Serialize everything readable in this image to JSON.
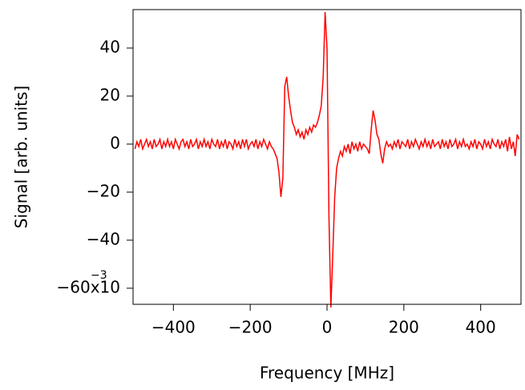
{
  "chart_data": {
    "type": "line",
    "xlabel": "Frequency [MHz]",
    "ylabel": "Signal [arb. units]",
    "y_exponent": "−3",
    "color": "#ff0000",
    "xlim": [
      -505,
      505
    ],
    "ylim": [
      -66.7,
      56
    ],
    "xticks": [
      {
        "value": -400,
        "label": "−400"
      },
      {
        "value": -200,
        "label": "−200"
      },
      0,
      200,
      400
    ],
    "yticks": [
      {
        "value": -60,
        "label": "−60x10"
      },
      {
        "value": -40,
        "label": "−40"
      },
      {
        "value": -20,
        "label": "−20"
      },
      0,
      20,
      40
    ],
    "x": [
      -500,
      -495,
      -490,
      -485,
      -480,
      -475,
      -470,
      -465,
      -460,
      -455,
      -450,
      -445,
      -440,
      -435,
      -430,
      -425,
      -420,
      -415,
      -410,
      -405,
      -400,
      -395,
      -390,
      -385,
      -380,
      -375,
      -370,
      -365,
      -360,
      -355,
      -350,
      -345,
      -340,
      -335,
      -330,
      -325,
      -320,
      -315,
      -310,
      -305,
      -300,
      -295,
      -290,
      -285,
      -280,
      -275,
      -270,
      -265,
      -260,
      -255,
      -250,
      -245,
      -240,
      -235,
      -230,
      -225,
      -220,
      -215,
      -210,
      -205,
      -200,
      -195,
      -190,
      -185,
      -180,
      -175,
      -170,
      -165,
      -160,
      -155,
      -150,
      -145,
      -140,
      -135,
      -130,
      -125,
      -120,
      -115,
      -110,
      -105,
      -100,
      -95,
      -90,
      -85,
      -80,
      -75,
      -70,
      -65,
      -60,
      -55,
      -50,
      -45,
      -40,
      -35,
      -30,
      -25,
      -20,
      -15,
      -10,
      -5,
      0,
      5,
      10,
      15,
      20,
      25,
      30,
      35,
      40,
      45,
      50,
      55,
      60,
      65,
      70,
      75,
      80,
      85,
      90,
      95,
      100,
      105,
      110,
      115,
      120,
      125,
      130,
      135,
      140,
      145,
      150,
      155,
      160,
      165,
      170,
      175,
      180,
      185,
      190,
      195,
      200,
      205,
      210,
      215,
      220,
      225,
      230,
      235,
      240,
      245,
      250,
      255,
      260,
      265,
      270,
      275,
      280,
      285,
      290,
      295,
      300,
      305,
      310,
      315,
      320,
      325,
      330,
      335,
      340,
      345,
      350,
      355,
      360,
      365,
      370,
      375,
      380,
      385,
      390,
      395,
      400,
      405,
      410,
      415,
      420,
      425,
      430,
      435,
      440,
      445,
      450,
      455,
      460,
      465,
      470,
      475,
      480,
      485,
      490,
      495,
      500
    ],
    "values": [
      -2,
      1,
      -1,
      2,
      -2,
      0,
      2,
      -1,
      1,
      -2,
      2,
      -1,
      0,
      2,
      -2,
      1,
      -1,
      2,
      -1,
      1,
      -2,
      2,
      0,
      -2,
      1,
      2,
      -1,
      1,
      -2,
      2,
      -1,
      0,
      2,
      -2,
      1,
      -1,
      2,
      -1,
      1,
      -2,
      2,
      0,
      -1,
      2,
      -2,
      1,
      -1,
      2,
      -2,
      1,
      0,
      -2,
      2,
      -1,
      1,
      -2,
      2,
      -1,
      2,
      -2,
      0,
      1,
      -1,
      2,
      -2,
      1,
      -1,
      2,
      0,
      -2,
      1,
      -1,
      -2,
      -4,
      -6,
      -12,
      -22,
      -14,
      24,
      28,
      20,
      14,
      9,
      7,
      4,
      6,
      3,
      5,
      2,
      6,
      4,
      7,
      5,
      8,
      7,
      9,
      12,
      16,
      28,
      55,
      40,
      -30,
      -68,
      -46,
      -22,
      -10,
      -6,
      -3,
      -5,
      -1,
      -3,
      0,
      -4,
      1,
      -2,
      0,
      -3,
      1,
      -2,
      0,
      -1,
      -2,
      -4,
      6,
      14,
      10,
      4,
      2,
      -4,
      -8,
      -2,
      1,
      -1,
      0,
      -2,
      1,
      -1,
      2,
      -2,
      1,
      0,
      -1,
      2,
      -2,
      1,
      -1,
      2,
      0,
      -2,
      1,
      -1,
      2,
      -1,
      1,
      -2,
      2,
      -1,
      0,
      1,
      -2,
      2,
      -1,
      1,
      -2,
      2,
      -1,
      0,
      2,
      -2,
      1,
      -1,
      2,
      -1,
      0,
      -2,
      1,
      -1,
      2,
      -2,
      1,
      0,
      -2,
      2,
      -1,
      1,
      -2,
      2,
      0,
      -1,
      2,
      -2,
      1,
      -1,
      2,
      -3,
      3,
      -2,
      1,
      -5,
      4,
      2
    ]
  }
}
